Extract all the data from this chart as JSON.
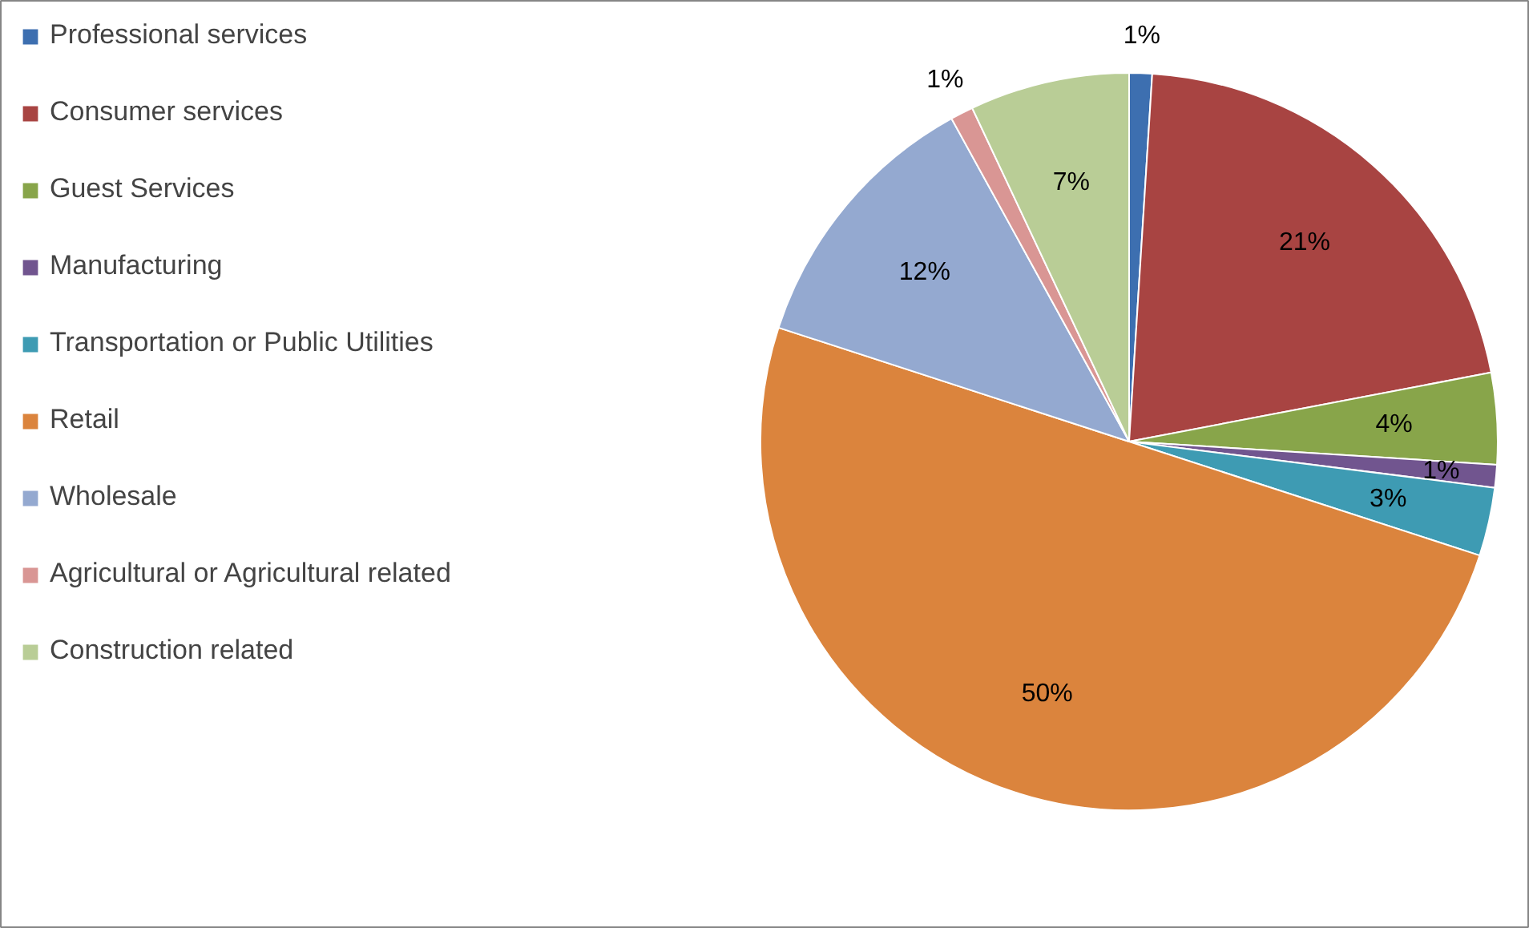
{
  "chart_data": {
    "type": "pie",
    "categories": [
      "Professional services",
      "Consumer services",
      "Guest Services",
      "Manufacturing",
      "Transportation or Public Utilities",
      "Retail",
      "Wholesale",
      "Agricultural or Agricultural related",
      "Construction related"
    ],
    "values": [
      1,
      21,
      4,
      1,
      3,
      50,
      12,
      1,
      7
    ],
    "colors": [
      "#3d6fb0",
      "#a84442",
      "#88a54a",
      "#71558f",
      "#3e9bb3",
      "#db843d",
      "#94a9d0",
      "#d99694",
      "#b9cd96"
    ],
    "value_labels": [
      "1%",
      "21%",
      "4%",
      "1%",
      "3%",
      "50%",
      "12%",
      "1%",
      "7%"
    ],
    "legend": "left"
  }
}
